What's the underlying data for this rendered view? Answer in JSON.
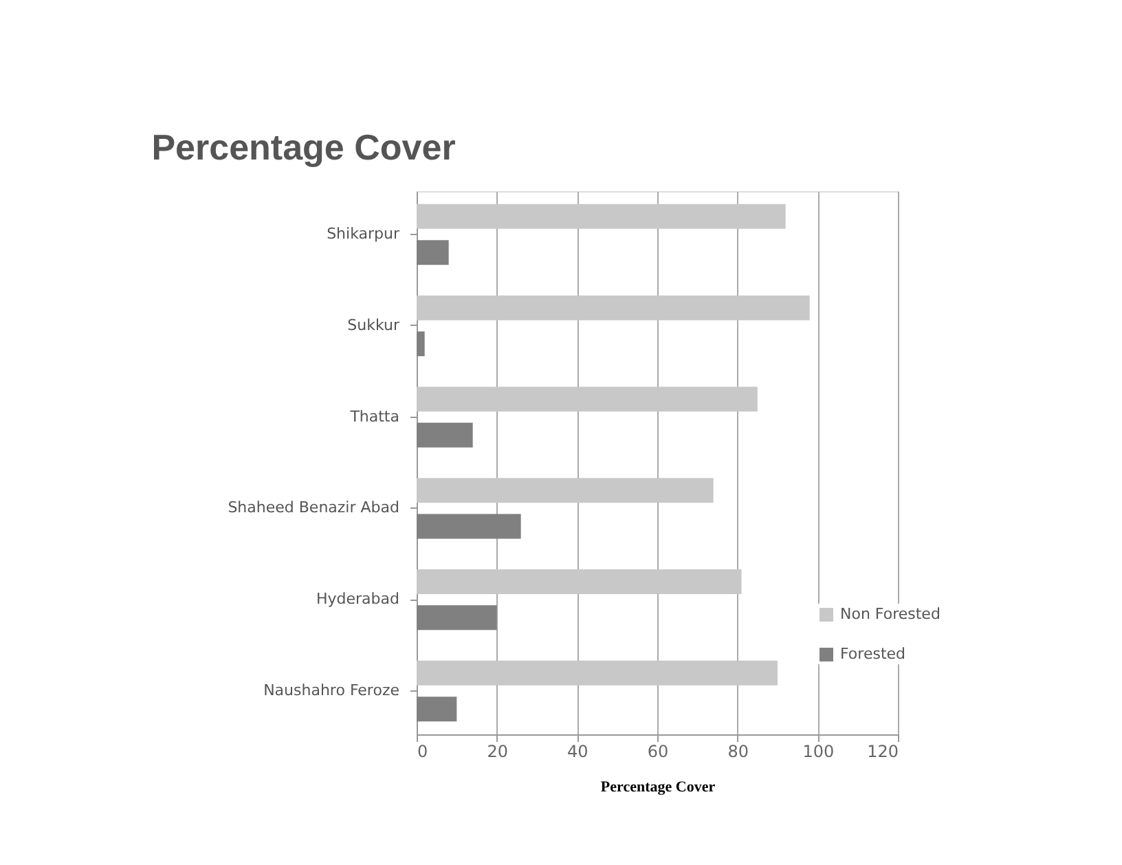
{
  "chart_data": {
    "type": "bar",
    "orientation": "horizontal",
    "title": "Percentage Cover",
    "xlabel": "Percentage Cover",
    "categories": [
      "Shikarpur",
      "Sukkur",
      "Thatta",
      "Shaheed Benazir Abad",
      "Hyderabad",
      "Naushahro Feroze"
    ],
    "series": [
      {
        "name": "Non Forested",
        "color": "#c8c8c8",
        "values": [
          92,
          98,
          85,
          74,
          81,
          90
        ]
      },
      {
        "name": "Forested",
        "color": "#808080",
        "values": [
          8,
          2,
          14,
          26,
          20,
          10
        ]
      }
    ],
    "xlim": [
      0,
      120
    ],
    "xticks": [
      0,
      20,
      40,
      60,
      80,
      100,
      120
    ],
    "grid": "x",
    "legend": "bottom right"
  }
}
